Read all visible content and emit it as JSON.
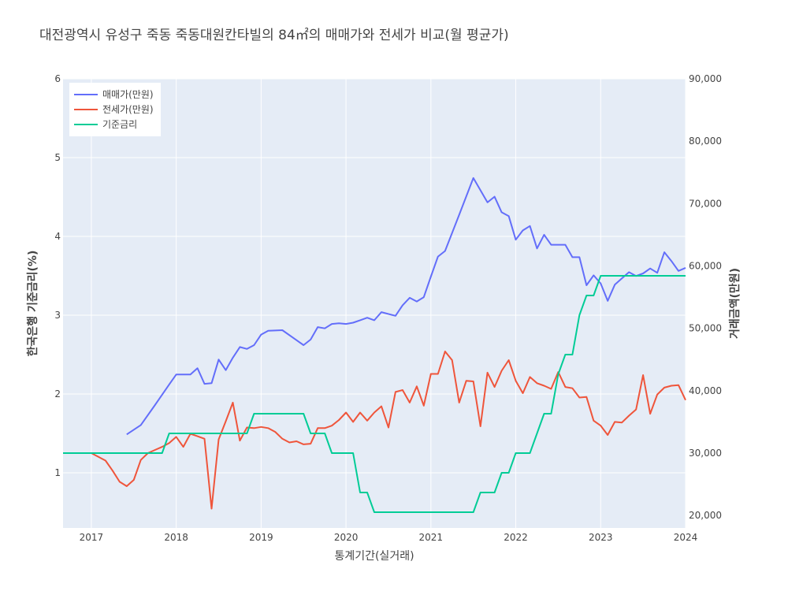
{
  "chart_data": {
    "type": "line",
    "title": "대전광역시 유성구 죽동 죽동대원칸타빌의 84㎡의 매매가와 전세가 비교(월 평균가)",
    "xlabel": "통계기간(실거래)",
    "ylabel_left": "한국은행 기준금리(%)",
    "ylabel_right": "거래금액(만원)",
    "x_ticks": [
      "2017",
      "2018",
      "2019",
      "2020",
      "2021",
      "2022",
      "2023",
      "2024"
    ],
    "y_left_ticks": [
      "1",
      "2",
      "3",
      "4",
      "5",
      "6"
    ],
    "y_right_ticks": [
      "20,000",
      "30,000",
      "40,000",
      "50,000",
      "60,000",
      "70,000",
      "80,000",
      "90,000"
    ],
    "xlim": [
      "2016-09",
      "2024-01"
    ],
    "ylim_left": [
      0.3,
      6.0
    ],
    "ylim_right": [
      18000,
      90000
    ],
    "grid": true,
    "legend": "top-left",
    "series": [
      {
        "name": "매매가(만원)",
        "color": "#636efa",
        "axis": "right",
        "points": [
          [
            "2017-06",
            33000
          ],
          [
            "2017-08",
            34500
          ],
          [
            "2017-10",
            37700
          ],
          [
            "2017-12",
            41000
          ],
          [
            "2018-01",
            42600
          ],
          [
            "2018-02",
            42600
          ],
          [
            "2018-03",
            42600
          ],
          [
            "2018-04",
            43600
          ],
          [
            "2018-05",
            41100
          ],
          [
            "2018-06",
            41200
          ],
          [
            "2018-07",
            45000
          ],
          [
            "2018-08",
            43300
          ],
          [
            "2018-09",
            45300
          ],
          [
            "2018-10",
            47000
          ],
          [
            "2018-11",
            46700
          ],
          [
            "2018-12",
            47300
          ],
          [
            "2019-01",
            49000
          ],
          [
            "2019-02",
            49600
          ],
          [
            "2019-04",
            49700
          ],
          [
            "2019-06",
            48100
          ],
          [
            "2019-07",
            47300
          ],
          [
            "2019-08",
            48200
          ],
          [
            "2019-09",
            50200
          ],
          [
            "2019-10",
            50000
          ],
          [
            "2019-11",
            50700
          ],
          [
            "2019-12",
            50800
          ],
          [
            "2020-01",
            50700
          ],
          [
            "2020-02",
            50900
          ],
          [
            "2020-03",
            51300
          ],
          [
            "2020-04",
            51700
          ],
          [
            "2020-05",
            51300
          ],
          [
            "2020-06",
            52600
          ],
          [
            "2020-08",
            52000
          ],
          [
            "2020-09",
            53700
          ],
          [
            "2020-10",
            54900
          ],
          [
            "2020-11",
            54300
          ],
          [
            "2020-12",
            55000
          ],
          [
            "2021-01",
            58300
          ],
          [
            "2021-02",
            61500
          ],
          [
            "2021-03",
            62400
          ],
          [
            "2021-05",
            68200
          ],
          [
            "2021-07",
            74100
          ],
          [
            "2021-09",
            70200
          ],
          [
            "2021-10",
            71100
          ],
          [
            "2021-11",
            68600
          ],
          [
            "2021-12",
            68000
          ],
          [
            "2022-01",
            64200
          ],
          [
            "2022-02",
            65700
          ],
          [
            "2022-03",
            66400
          ],
          [
            "2022-04",
            62800
          ],
          [
            "2022-05",
            65000
          ],
          [
            "2022-06",
            63400
          ],
          [
            "2022-07",
            63400
          ],
          [
            "2022-08",
            63400
          ],
          [
            "2022-09",
            61400
          ],
          [
            "2022-10",
            61400
          ],
          [
            "2022-11",
            56900
          ],
          [
            "2022-12",
            58500
          ],
          [
            "2023-01",
            57200
          ],
          [
            "2023-02",
            54400
          ],
          [
            "2023-03",
            57000
          ],
          [
            "2023-04",
            58000
          ],
          [
            "2023-05",
            59000
          ],
          [
            "2023-06",
            58400
          ],
          [
            "2023-07",
            58800
          ],
          [
            "2023-08",
            59600
          ],
          [
            "2023-09",
            58900
          ],
          [
            "2023-10",
            62200
          ],
          [
            "2023-11",
            60800
          ],
          [
            "2023-12",
            59200
          ],
          [
            "2024-01",
            59700
          ]
        ]
      },
      {
        "name": "전세가(만원)",
        "color": "#ef553b",
        "axis": "right",
        "points": [
          [
            "2017-01",
            30000
          ],
          [
            "2017-03",
            28800
          ],
          [
            "2017-04",
            27200
          ],
          [
            "2017-05",
            25400
          ],
          [
            "2017-06",
            24700
          ],
          [
            "2017-07",
            25700
          ],
          [
            "2017-08",
            28900
          ],
          [
            "2017-09",
            30000
          ],
          [
            "2017-10",
            30500
          ],
          [
            "2017-11",
            31000
          ],
          [
            "2017-12",
            31600
          ],
          [
            "2018-01",
            32600
          ],
          [
            "2018-02",
            31000
          ],
          [
            "2018-03",
            33100
          ],
          [
            "2018-04",
            32700
          ],
          [
            "2018-05",
            32300
          ],
          [
            "2018-06",
            21100
          ],
          [
            "2018-07",
            32200
          ],
          [
            "2018-08",
            35100
          ],
          [
            "2018-09",
            38100
          ],
          [
            "2018-10",
            32000
          ],
          [
            "2018-11",
            34100
          ],
          [
            "2018-12",
            34000
          ],
          [
            "2019-01",
            34200
          ],
          [
            "2019-02",
            34000
          ],
          [
            "2019-03",
            33400
          ],
          [
            "2019-04",
            32300
          ],
          [
            "2019-05",
            31700
          ],
          [
            "2019-06",
            31900
          ],
          [
            "2019-07",
            31400
          ],
          [
            "2019-08",
            31500
          ],
          [
            "2019-09",
            34000
          ],
          [
            "2019-10",
            34000
          ],
          [
            "2019-11",
            34400
          ],
          [
            "2019-12",
            35300
          ],
          [
            "2020-01",
            36500
          ],
          [
            "2020-02",
            35000
          ],
          [
            "2020-03",
            36500
          ],
          [
            "2020-04",
            35200
          ],
          [
            "2020-05",
            36500
          ],
          [
            "2020-06",
            37500
          ],
          [
            "2020-07",
            34100
          ],
          [
            "2020-08",
            39800
          ],
          [
            "2020-09",
            40100
          ],
          [
            "2020-10",
            38100
          ],
          [
            "2020-11",
            40700
          ],
          [
            "2020-12",
            37600
          ],
          [
            "2021-01",
            42700
          ],
          [
            "2021-02",
            42700
          ],
          [
            "2021-03",
            46300
          ],
          [
            "2021-04",
            44900
          ],
          [
            "2021-05",
            38100
          ],
          [
            "2021-06",
            41600
          ],
          [
            "2021-07",
            41500
          ],
          [
            "2021-08",
            34300
          ],
          [
            "2021-09",
            42900
          ],
          [
            "2021-10",
            40600
          ],
          [
            "2021-11",
            43200
          ],
          [
            "2021-12",
            44900
          ],
          [
            "2022-01",
            41600
          ],
          [
            "2022-02",
            39600
          ],
          [
            "2022-03",
            42200
          ],
          [
            "2022-04",
            41200
          ],
          [
            "2022-05",
            40800
          ],
          [
            "2022-06",
            40300
          ],
          [
            "2022-07",
            43000
          ],
          [
            "2022-08",
            40600
          ],
          [
            "2022-09",
            40400
          ],
          [
            "2022-10",
            38900
          ],
          [
            "2022-11",
            39000
          ],
          [
            "2022-12",
            35200
          ],
          [
            "2023-01",
            34400
          ],
          [
            "2023-02",
            32900
          ],
          [
            "2023-03",
            35000
          ],
          [
            "2023-04",
            34900
          ],
          [
            "2023-05",
            36000
          ],
          [
            "2023-06",
            37000
          ],
          [
            "2023-07",
            42500
          ],
          [
            "2023-08",
            36300
          ],
          [
            "2023-09",
            39400
          ],
          [
            "2023-10",
            40500
          ],
          [
            "2023-11",
            40800
          ],
          [
            "2023-12",
            40900
          ],
          [
            "2024-01",
            38500
          ]
        ]
      },
      {
        "name": "기준금리",
        "color": "#00cc96",
        "axis": "left",
        "points": [
          [
            "2016-09",
            1.25
          ],
          [
            "2017-11",
            1.25
          ],
          [
            "2017-12",
            1.5
          ],
          [
            "2018-11",
            1.5
          ],
          [
            "2018-12",
            1.75
          ],
          [
            "2019-07",
            1.75
          ],
          [
            "2019-08",
            1.5
          ],
          [
            "2019-10",
            1.5
          ],
          [
            "2019-11",
            1.25
          ],
          [
            "2020-02",
            1.25
          ],
          [
            "2020-03",
            0.75
          ],
          [
            "2020-04",
            0.75
          ],
          [
            "2020-05",
            0.5
          ],
          [
            "2021-07",
            0.5
          ],
          [
            "2021-08",
            0.75
          ],
          [
            "2021-10",
            0.75
          ],
          [
            "2021-11",
            1.0
          ],
          [
            "2021-12",
            1.0
          ],
          [
            "2022-01",
            1.25
          ],
          [
            "2022-03",
            1.25
          ],
          [
            "2022-04",
            1.5
          ],
          [
            "2022-05",
            1.75
          ],
          [
            "2022-06",
            1.75
          ],
          [
            "2022-07",
            2.25
          ],
          [
            "2022-08",
            2.5
          ],
          [
            "2022-09",
            2.5
          ],
          [
            "2022-10",
            3.0
          ],
          [
            "2022-11",
            3.25
          ],
          [
            "2022-12",
            3.25
          ],
          [
            "2023-01",
            3.5
          ],
          [
            "2024-01",
            3.5
          ]
        ]
      }
    ]
  }
}
